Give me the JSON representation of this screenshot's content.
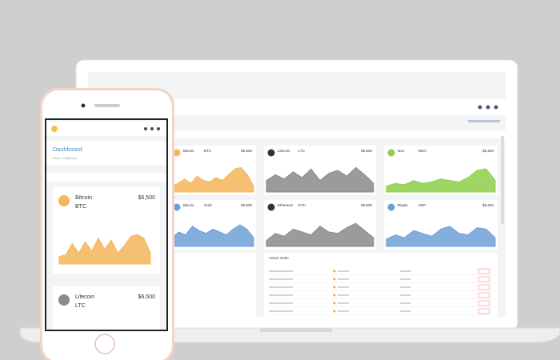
{
  "laptop": {
    "cards": [
      {
        "name": "Bitcoin",
        "symbol": "BTC",
        "price": "$6,500",
        "color": "#f5b55a",
        "spark": [
          20,
          30,
          45,
          30,
          55,
          40,
          35,
          50,
          40,
          60,
          80,
          85,
          60,
          20
        ]
      },
      {
        "name": "Litecoin",
        "symbol": "LTC",
        "price": "$6,500",
        "color": "#8a8a8a",
        "spark": [
          40,
          60,
          45,
          70,
          50,
          80,
          40,
          65,
          75,
          55,
          85,
          60,
          30
        ]
      },
      {
        "name": "Neo",
        "symbol": "NEO",
        "price": "$6,500",
        "color": "#8ccf4a",
        "spark": [
          20,
          30,
          25,
          40,
          30,
          35,
          45,
          40,
          35,
          50,
          75,
          80,
          40
        ]
      },
      {
        "name": "Bitcoin",
        "symbol": "Gold",
        "price": "$6,500",
        "color": "#6fa0d8",
        "spark": [
          30,
          50,
          40,
          70,
          55,
          45,
          60,
          50,
          40,
          60,
          75,
          60,
          30
        ]
      },
      {
        "name": "Ethereum",
        "symbol": "ETH",
        "price": "$6,500",
        "color": "#8a8a8a",
        "spark": [
          20,
          45,
          35,
          60,
          50,
          40,
          70,
          50,
          45,
          65,
          80,
          55,
          30
        ]
      },
      {
        "name": "Ripple",
        "symbol": "XRP",
        "price": "$6,500",
        "color": "#6fa0d8",
        "spark": [
          25,
          40,
          30,
          55,
          45,
          35,
          60,
          70,
          45,
          40,
          65,
          60,
          30
        ]
      }
    ],
    "table_title": "Active Order"
  },
  "phone": {
    "title": "Dashboard",
    "breadcrumb": "Home > Dashboard",
    "cards": [
      {
        "name": "Bitcoin",
        "symbol": "BTC",
        "price": "$6,500",
        "color": "#f5b55a",
        "spark": [
          20,
          25,
          55,
          30,
          60,
          35,
          70,
          40,
          65,
          30,
          50,
          75,
          80,
          70,
          30
        ]
      },
      {
        "name": "Litecoin",
        "symbol": "LTC",
        "price": "$6,500",
        "color": "#8a8a8a"
      }
    ]
  }
}
